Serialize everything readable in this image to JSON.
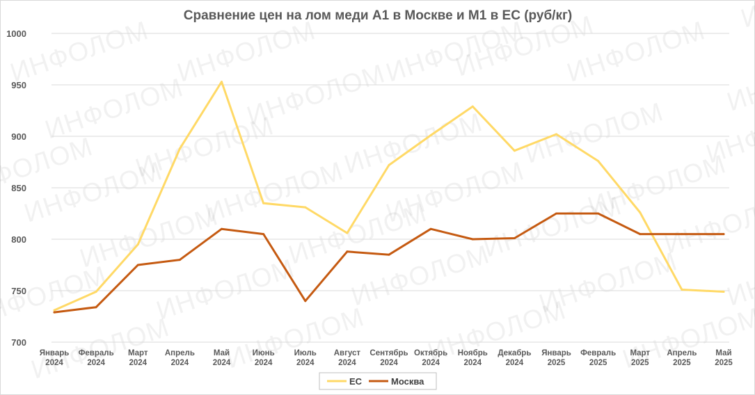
{
  "watermark": "ИНФОЛОМ",
  "chart_data": {
    "type": "line",
    "title": "Сравнение цен на лом меди А1 в Москве и М1 в ЕС (руб/кг)",
    "categories": [
      [
        "Январь",
        "2024"
      ],
      [
        "Февраль",
        "2024"
      ],
      [
        "Март",
        "2024"
      ],
      [
        "Апрель",
        "2024"
      ],
      [
        "Май",
        "2024"
      ],
      [
        "Июнь",
        "2024"
      ],
      [
        "Июль",
        "2024"
      ],
      [
        "Август",
        "2024"
      ],
      [
        "Сентябрь",
        "2024"
      ],
      [
        "Октябрь",
        "2024"
      ],
      [
        "Ноябрь",
        "2024"
      ],
      [
        "Декабрь",
        "2024"
      ],
      [
        "Январь",
        "2025"
      ],
      [
        "Февраль",
        "2025"
      ],
      [
        "Март",
        "2025"
      ],
      [
        "Апрель",
        "2025"
      ],
      [
        "Май",
        "2025"
      ]
    ],
    "series": [
      {
        "name": "ЕС",
        "color": "#FFD966",
        "values": [
          731,
          749,
          795,
          888,
          953,
          835,
          831,
          806,
          872,
          901,
          929,
          886,
          902,
          876,
          826,
          751,
          749
        ]
      },
      {
        "name": "Москва",
        "color": "#C55A11",
        "values": [
          729,
          734,
          775,
          780,
          810,
          805,
          740,
          788,
          785,
          810,
          800,
          801,
          825,
          825,
          805,
          805,
          805
        ]
      }
    ],
    "ylim": [
      700,
      1000
    ],
    "yticks": [
      700,
      750,
      800,
      850,
      900,
      950,
      1000
    ],
    "grid": true,
    "legend": "bottom-center"
  }
}
